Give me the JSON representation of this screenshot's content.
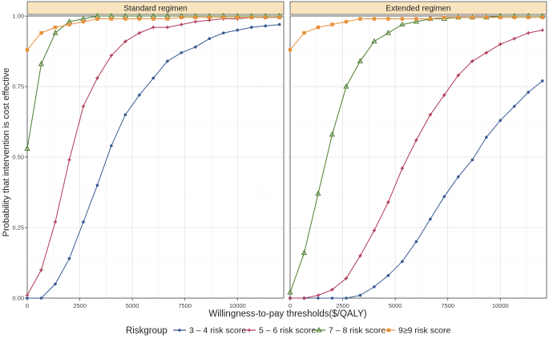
{
  "chart_data": {
    "type": "line",
    "ylabel": "Probability that intervention is cost effective",
    "xlabel": "Willingness-to-pay thresholds($/QALY)",
    "xlim": [
      0,
      12200
    ],
    "ylim": [
      0,
      1.0
    ],
    "x_ticks": [
      "0",
      "2500",
      "5000",
      "7500",
      "10000"
    ],
    "x_tick_values": [
      0,
      2500,
      5000,
      7500,
      10000
    ],
    "y_ticks": [
      "0.00",
      "0.25",
      "0.50",
      "0.75",
      "1.00"
    ],
    "y_tick_values": [
      0,
      0.25,
      0.5,
      0.75,
      1.0
    ],
    "grid": true,
    "legend": {
      "title": "Riskgroup",
      "position": "bottom"
    },
    "x": [
      0,
      667,
      1333,
      2000,
      2667,
      3333,
      4000,
      4667,
      5333,
      6000,
      6667,
      7333,
      8000,
      8667,
      9333,
      10000,
      10667,
      11333,
      12000
    ],
    "series_style": [
      {
        "name": "3 – 4 risk score",
        "color": "#3a5a92",
        "marker": "dot"
      },
      {
        "name": "5 – 6 risk score",
        "color": "#b03a55",
        "marker": "plus"
      },
      {
        "name": "7 – 8 risk score",
        "color": "#4e7d2e",
        "marker": "triangle"
      },
      {
        "name": "9≥9 risk score",
        "color": "#e8903a",
        "marker": "square"
      }
    ],
    "panels": [
      {
        "title": "Standard regimen",
        "series": [
          {
            "name": "3 – 4 risk score",
            "values": [
              0.0,
              0.0,
              0.05,
              0.14,
              0.27,
              0.4,
              0.54,
              0.65,
              0.72,
              0.78,
              0.84,
              0.87,
              0.89,
              0.92,
              0.94,
              0.95,
              0.96,
              0.965,
              0.97
            ]
          },
          {
            "name": "5 – 6 risk score",
            "values": [
              0.01,
              0.1,
              0.27,
              0.49,
              0.68,
              0.78,
              0.86,
              0.91,
              0.94,
              0.96,
              0.96,
              0.97,
              0.98,
              0.985,
              0.99,
              0.99,
              0.995,
              0.995,
              0.995
            ]
          },
          {
            "name": "7 – 8 risk score",
            "values": [
              0.53,
              0.83,
              0.94,
              0.98,
              0.99,
              1.0,
              1.0,
              1.0,
              1.0,
              1.0,
              1.0,
              1.0,
              1.0,
              1.0,
              1.0,
              1.0,
              1.0,
              1.0,
              1.0
            ]
          },
          {
            "name": "9≥9 risk score",
            "values": [
              0.88,
              0.94,
              0.96,
              0.97,
              0.98,
              0.99,
              0.99,
              0.99,
              0.99,
              0.99,
              0.99,
              0.995,
              0.995,
              0.995,
              0.995,
              0.995,
              0.995,
              0.995,
              0.995
            ]
          }
        ]
      },
      {
        "title": "Extended regimen",
        "series": [
          {
            "name": "3 – 4 risk score",
            "values": [
              0.0,
              0.0,
              0.0,
              0.0,
              0.0,
              0.01,
              0.04,
              0.08,
              0.13,
              0.2,
              0.28,
              0.36,
              0.43,
              0.49,
              0.57,
              0.63,
              0.68,
              0.73,
              0.77
            ]
          },
          {
            "name": "5 – 6 risk score",
            "values": [
              0.0,
              0.0,
              0.01,
              0.03,
              0.07,
              0.15,
              0.24,
              0.34,
              0.46,
              0.56,
              0.65,
              0.72,
              0.79,
              0.84,
              0.87,
              0.9,
              0.92,
              0.94,
              0.95
            ]
          },
          {
            "name": "7 – 8 risk score",
            "values": [
              0.02,
              0.16,
              0.37,
              0.58,
              0.75,
              0.84,
              0.91,
              0.94,
              0.97,
              0.98,
              0.99,
              0.99,
              0.995,
              0.995,
              0.995,
              1.0,
              1.0,
              1.0,
              1.0
            ]
          },
          {
            "name": "9≥9 risk score",
            "values": [
              0.88,
              0.94,
              0.96,
              0.97,
              0.98,
              0.99,
              0.99,
              0.99,
              0.99,
              0.99,
              0.99,
              0.995,
              0.995,
              0.995,
              0.995,
              0.995,
              0.995,
              0.995,
              0.995
            ]
          }
        ]
      }
    ]
  }
}
